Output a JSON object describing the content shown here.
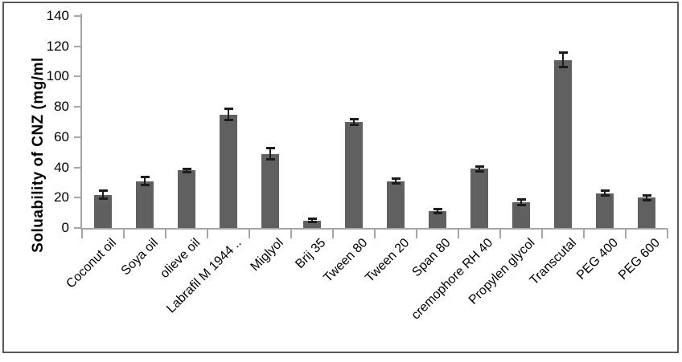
{
  "chart_data": {
    "type": "bar",
    "title": "",
    "xlabel": "",
    "ylabel": "Soluability of CNZ (mg/ml",
    "ylim": [
      0,
      140
    ],
    "yticks": [
      0,
      20,
      40,
      60,
      80,
      100,
      120,
      140
    ],
    "grid": false,
    "legend": "none",
    "categories": [
      "Coconut oil",
      "Soya oil",
      "olieve oil",
      "Labrafil M 1944 ..",
      "Miglyol",
      "Brij 35",
      "Tween 80",
      "Tween 20",
      "Span 80",
      "cremophore RH 40",
      "Propylen glycol",
      "Transcutal",
      "PEG 400",
      "PEG 600"
    ],
    "series": [
      {
        "name": "Soluability of CNZ (mg/ml)",
        "values": [
          22,
          31,
          38,
          75,
          49,
          5,
          70,
          31,
          11,
          39,
          17,
          111,
          23,
          20
        ],
        "error_bars": [
          3,
          3,
          1.5,
          4,
          4,
          1.5,
          2,
          2,
          1.5,
          2,
          2,
          5,
          2,
          2
        ]
      }
    ],
    "colors": {
      "bar_fill": "#606060",
      "error_bar": "#1c1c1c",
      "axis_line": "#a6a6a6",
      "tick_label": "#000000",
      "frame_border": "#595959",
      "background": "#ffffff"
    }
  }
}
